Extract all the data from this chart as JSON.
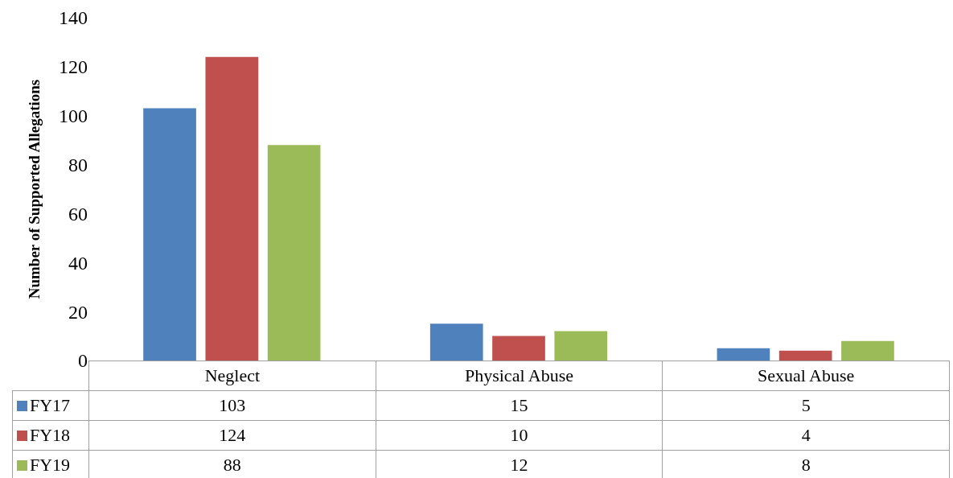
{
  "chart_data": {
    "type": "bar",
    "ylabel": "Number of Supported Allegations",
    "categories": [
      "Neglect",
      "Physical Abuse",
      "Sexual Abuse"
    ],
    "series": [
      {
        "name": "FY17",
        "color": "#4f81bd",
        "values": [
          103,
          15,
          5
        ]
      },
      {
        "name": "FY18",
        "color": "#c0504d",
        "values": [
          124,
          10,
          4
        ]
      },
      {
        "name": "FY19",
        "color": "#9bbb59",
        "values": [
          88,
          12,
          8
        ]
      }
    ],
    "ylim": [
      0,
      140
    ],
    "yticks": [
      0,
      20,
      40,
      60,
      80,
      100,
      120,
      140
    ],
    "data_labels": true,
    "legend": "bottom left"
  }
}
